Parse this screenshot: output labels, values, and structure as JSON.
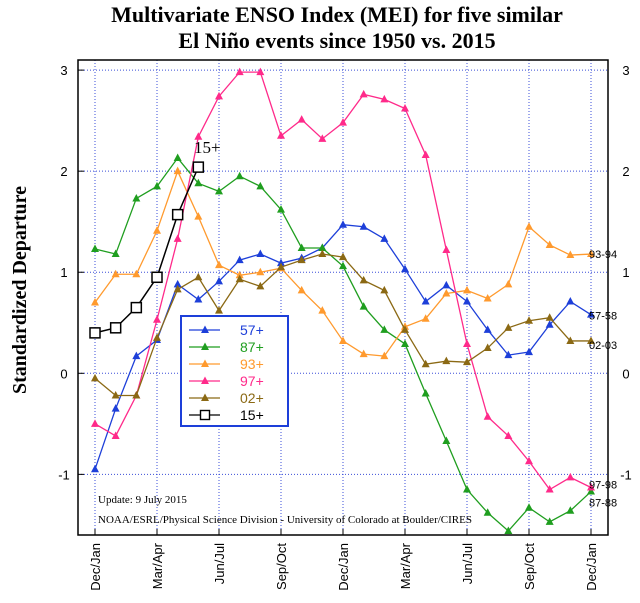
{
  "chart_data": {
    "type": "line",
    "title_lines": [
      "Multivariate ENSO Index (MEI) for five similar",
      "El Niño events since 1950 vs. 2015"
    ],
    "ylabel": "Standardized Departure",
    "ylim": [
      -1.6,
      3.1
    ],
    "yticks": [
      -1,
      0,
      1,
      2,
      3
    ],
    "x_tick_labels": [
      "Dec/Jan",
      "Mar/Apr",
      "Jun/Jul",
      "Sep/Oct",
      "Dec/Jan",
      "Mar/Apr",
      "Jun/Jul",
      "Sep/Oct",
      "Dec/Jan"
    ],
    "x_count": 25,
    "grid": true,
    "legend_position": "center-left",
    "series": [
      {
        "name": "57+",
        "end_label": "57-58",
        "color": "#1d3fd9",
        "marker": "triangle",
        "values": [
          -0.95,
          -0.35,
          0.17,
          0.33,
          0.88,
          0.73,
          0.91,
          1.12,
          1.18,
          1.09,
          1.14,
          1.24,
          1.47,
          1.45,
          1.33,
          1.03,
          0.71,
          0.87,
          0.71,
          0.43,
          0.18,
          0.21,
          0.48,
          0.71,
          0.58
        ]
      },
      {
        "name": "87+",
        "end_label": "87-88",
        "color": "#1f9e1f",
        "marker": "triangle",
        "values": [
          1.23,
          1.18,
          1.73,
          1.85,
          2.13,
          1.88,
          1.8,
          1.95,
          1.85,
          1.62,
          1.24,
          1.24,
          1.06,
          0.66,
          0.43,
          0.29,
          -0.2,
          -0.67,
          -1.15,
          -1.38,
          -1.56,
          -1.33,
          -1.47,
          -1.36,
          -1.17
        ]
      },
      {
        "name": "93+",
        "end_label": "93-94",
        "color": "#ff9a2e",
        "marker": "triangle",
        "values": [
          0.7,
          0.98,
          0.98,
          1.41,
          2.0,
          1.55,
          1.07,
          0.97,
          1.0,
          1.04,
          0.82,
          0.62,
          0.32,
          0.19,
          0.17,
          0.46,
          0.54,
          0.79,
          0.82,
          0.74,
          0.88,
          1.45,
          1.27,
          1.17,
          1.18
        ]
      },
      {
        "name": "97+",
        "end_label": "97-98",
        "color": "#ff2a8a",
        "marker": "triangle",
        "values": [
          -0.5,
          -0.62,
          -0.22,
          0.53,
          1.33,
          2.34,
          2.74,
          2.98,
          2.98,
          2.35,
          2.51,
          2.32,
          2.48,
          2.76,
          2.71,
          2.62,
          2.16,
          1.22,
          0.29,
          -0.43,
          -0.62,
          -0.87,
          -1.15,
          -1.03,
          -1.13
        ]
      },
      {
        "name": "02+",
        "end_label": "02-03",
        "color": "#8b6914",
        "marker": "triangle",
        "values": [
          -0.05,
          -0.22,
          -0.22,
          0.35,
          0.83,
          0.95,
          0.62,
          0.93,
          0.86,
          1.05,
          1.12,
          1.18,
          1.15,
          0.92,
          0.82,
          0.43,
          0.09,
          0.12,
          0.11,
          0.25,
          0.45,
          0.52,
          0.55,
          0.32,
          0.32
        ]
      },
      {
        "name": "15+",
        "end_label": "15+",
        "color": "#000000",
        "marker": "square",
        "values": [
          0.4,
          0.45,
          0.65,
          0.95,
          1.57,
          2.04
        ]
      }
    ],
    "annotations": {
      "update": "Update: 9 July 2015",
      "credit": "NOAA/ESRL/Physical Science Division - University of Colorado at Boulder/CIRES"
    }
  },
  "colors": {
    "grid": "#3b4fd8",
    "frame": "#000000",
    "legend_border": "#1d3fd9"
  }
}
